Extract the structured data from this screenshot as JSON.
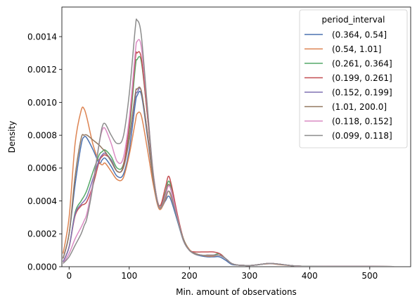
{
  "chart_data": {
    "type": "line",
    "xlabel": "Min. amount of observations",
    "ylabel": "Density",
    "xlim": [
      -12,
      568
    ],
    "ylim": [
      0,
      0.00158
    ],
    "x_ticks": [
      0,
      100,
      200,
      300,
      400,
      500
    ],
    "x_tick_labels": [
      "0",
      "100",
      "200",
      "300",
      "400",
      "500"
    ],
    "y_ticks": [
      0,
      0.0002,
      0.0004,
      0.0006,
      0.0008,
      0.001,
      0.0012,
      0.0014
    ],
    "y_tick_labels": [
      "0.0000",
      "0.0002",
      "0.0004",
      "0.0006",
      "0.0008",
      "0.0010",
      "0.0012",
      "0.0014"
    ],
    "legend": {
      "title": "period_interval",
      "position": "top-right"
    },
    "x": [
      -10,
      0,
      10,
      20,
      25,
      30,
      40,
      50,
      55,
      60,
      70,
      80,
      90,
      100,
      110,
      113,
      120,
      130,
      140,
      150,
      160,
      165,
      170,
      180,
      190,
      200,
      210,
      220,
      230,
      240,
      250,
      260,
      270,
      280,
      290,
      300,
      310,
      320,
      335,
      350,
      375,
      400,
      450,
      500,
      540
    ],
    "series": [
      {
        "name": "(0.364, 0.54]",
        "color": "#4c72b0",
        "values": [
          5e-05,
          0.0002,
          0.0005,
          0.00074,
          0.00079,
          0.00078,
          0.00071,
          0.00063,
          0.00065,
          0.00066,
          0.00061,
          0.00055,
          0.00056,
          0.00071,
          0.00099,
          0.00104,
          0.00105,
          0.0008,
          0.00053,
          0.00036,
          0.0004,
          0.00043,
          0.0004,
          0.00028,
          0.00016,
          0.0001,
          7.5e-05,
          6.5e-05,
          6e-05,
          6e-05,
          6e-05,
          4e-05,
          1.5e-05,
          1e-05,
          8e-06,
          7e-06,
          1e-05,
          1.5e-05,
          2e-05,
          1.5e-05,
          5e-06,
          3e-06,
          2e-06,
          2e-06,
          1e-06
        ]
      },
      {
        "name": "(0.54, 1.01]",
        "color": "#dd8452",
        "values": [
          8e-05,
          0.0003,
          0.00075,
          0.00095,
          0.00096,
          0.0009,
          0.00074,
          0.00064,
          0.00062,
          0.00063,
          0.00058,
          0.00053,
          0.00054,
          0.00068,
          0.00088,
          0.00093,
          0.00092,
          0.00072,
          0.0005,
          0.00035,
          0.00041,
          0.00046,
          0.00042,
          0.0003,
          0.00017,
          0.000105,
          8e-05,
          7e-05,
          6.5e-05,
          6.5e-05,
          7e-05,
          5e-05,
          2e-05,
          1e-05,
          8e-06,
          7e-06,
          1e-05,
          1.5e-05,
          1.8e-05,
          1.3e-05,
          5e-06,
          3e-06,
          2e-06,
          2e-06,
          1e-06
        ]
      },
      {
        "name": "(0.261, 0.364]",
        "color": "#55a868",
        "values": [
          3e-05,
          0.00012,
          0.00033,
          0.0004,
          0.00043,
          0.00047,
          0.00058,
          0.00068,
          0.0007,
          0.00071,
          0.00067,
          0.0006,
          0.00062,
          0.00083,
          0.00121,
          0.00126,
          0.00125,
          0.00093,
          0.00056,
          0.00036,
          0.00045,
          0.00052,
          0.00048,
          0.00031,
          0.00017,
          0.0001,
          8e-05,
          7e-05,
          7e-05,
          7e-05,
          8e-05,
          5e-05,
          2e-05,
          1e-05,
          8e-06,
          7e-06,
          1e-05,
          1.5e-05,
          2e-05,
          1.5e-05,
          5e-06,
          3e-06,
          2e-06,
          2e-06,
          1e-06
        ]
      },
      {
        "name": "(0.199, 0.261]",
        "color": "#c44e52",
        "values": [
          3e-05,
          0.00012,
          0.00031,
          0.00037,
          0.00038,
          0.0004,
          0.0005,
          0.00064,
          0.00067,
          0.00068,
          0.00065,
          0.00058,
          0.00061,
          0.00086,
          0.00126,
          0.0013,
          0.00127,
          0.00093,
          0.00056,
          0.00037,
          0.00048,
          0.00055,
          0.0005,
          0.00032,
          0.00017,
          0.0001,
          9e-05,
          9e-05,
          9e-05,
          9e-05,
          8e-05,
          5e-05,
          2e-05,
          1e-05,
          8e-06,
          7e-06,
          1e-05,
          1.5e-05,
          2e-05,
          1.5e-05,
          5e-06,
          3e-06,
          2e-06,
          2e-06,
          1e-06
        ]
      },
      {
        "name": "(0.152, 0.199]",
        "color": "#8172b3",
        "values": [
          3e-05,
          0.00012,
          0.00032,
          0.00038,
          0.0004,
          0.00043,
          0.00054,
          0.00065,
          0.00068,
          0.00069,
          0.00065,
          0.00058,
          0.0006,
          0.00077,
          0.00103,
          0.00106,
          0.00107,
          0.00082,
          0.00053,
          0.00036,
          0.00044,
          0.0005,
          0.00046,
          0.0003,
          0.00016,
          0.0001,
          8e-05,
          7e-05,
          7e-05,
          7e-05,
          7e-05,
          5e-05,
          2e-05,
          1e-05,
          8e-06,
          7e-06,
          1e-05,
          1.5e-05,
          2e-05,
          1.5e-05,
          5e-06,
          3e-06,
          2e-06,
          2e-06,
          1e-06
        ]
      },
      {
        "name": "(1.01, 200.0]",
        "color": "#937860",
        "values": [
          5e-05,
          0.0002,
          0.00055,
          0.00078,
          0.0008,
          0.0008,
          0.00077,
          0.00074,
          0.00072,
          0.0007,
          0.00064,
          0.00058,
          0.0006,
          0.00078,
          0.00105,
          0.00108,
          0.00107,
          0.00082,
          0.00053,
          0.00036,
          0.00044,
          0.0005,
          0.00046,
          0.0003,
          0.00017,
          0.0001,
          8e-05,
          7e-05,
          7e-05,
          7e-05,
          7e-05,
          5e-05,
          2e-05,
          1e-05,
          8e-06,
          7e-06,
          1e-05,
          1.5e-05,
          2e-05,
          1.5e-05,
          5e-06,
          3e-06,
          2e-06,
          2e-06,
          1e-06
        ]
      },
      {
        "name": "(0.118, 0.152]",
        "color": "#da8bc3",
        "values": [
          2e-05,
          8e-05,
          0.00017,
          0.00024,
          0.00028,
          0.00033,
          0.00052,
          0.00075,
          0.00083,
          0.00084,
          0.00075,
          0.00064,
          0.00066,
          0.0009,
          0.0013,
          0.00137,
          0.00134,
          0.00097,
          0.00057,
          0.00036,
          0.00043,
          0.00049,
          0.00046,
          0.0003,
          0.00016,
          0.0001,
          7.5e-05,
          7e-05,
          7e-05,
          7e-05,
          7e-05,
          5e-05,
          2e-05,
          1e-05,
          8e-06,
          7e-06,
          1e-05,
          1.5e-05,
          2e-05,
          1.5e-05,
          5e-06,
          3e-06,
          2e-06,
          2e-06,
          1e-06
        ]
      },
      {
        "name": "(0.099, 0.118]",
        "color": "#8c8c8c",
        "values": [
          2e-05,
          6e-05,
          0.00013,
          0.0002,
          0.00025,
          0.0003,
          0.0005,
          0.00075,
          0.00085,
          0.00087,
          0.0008,
          0.00075,
          0.00079,
          0.00105,
          0.00145,
          0.0015,
          0.00141,
          0.00098,
          0.00056,
          0.00036,
          0.00042,
          0.00046,
          0.00043,
          0.00029,
          0.00016,
          0.0001,
          7.5e-05,
          7e-05,
          7e-05,
          7e-05,
          7e-05,
          5e-05,
          2e-05,
          1e-05,
          8e-06,
          7e-06,
          1e-05,
          1.5e-05,
          2e-05,
          1.5e-05,
          5e-06,
          3e-06,
          2e-06,
          2e-06,
          1e-06
        ]
      }
    ]
  }
}
